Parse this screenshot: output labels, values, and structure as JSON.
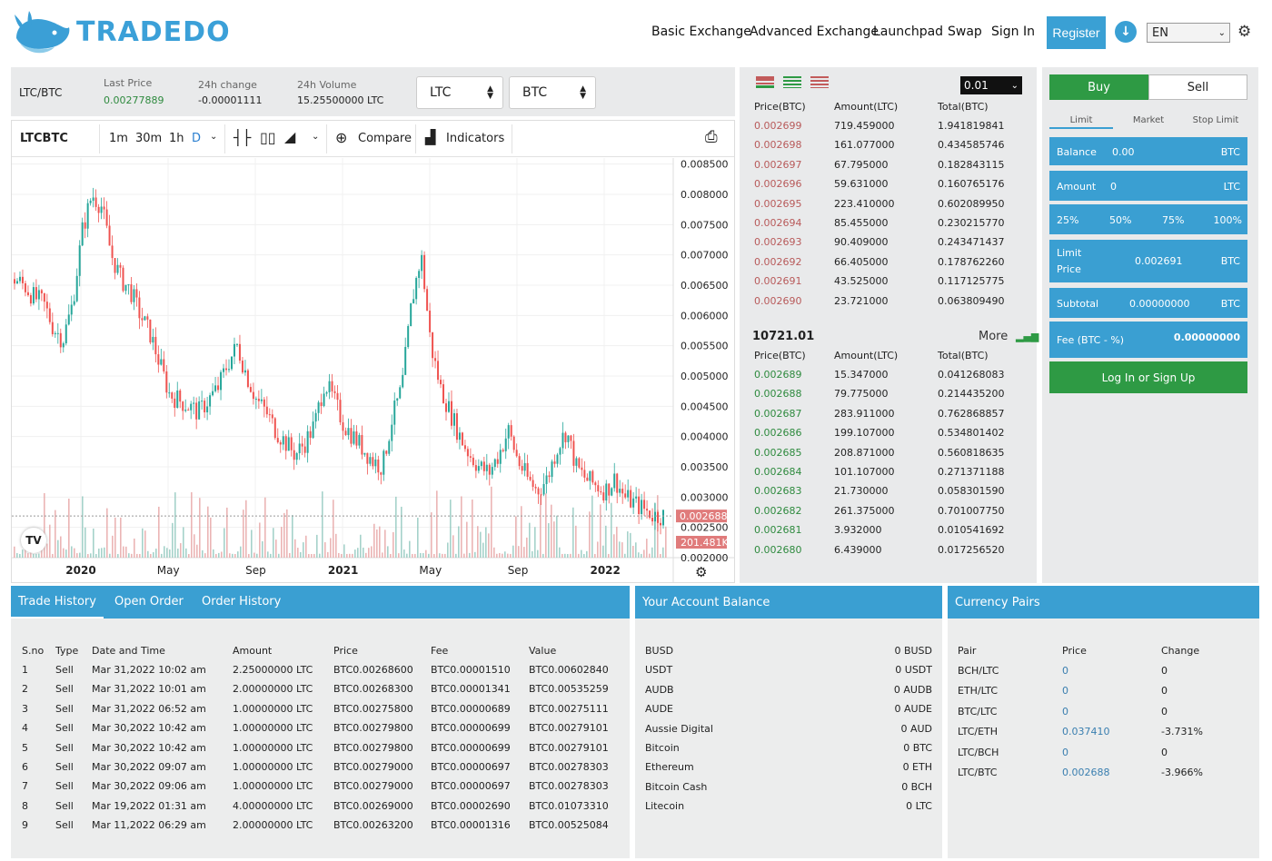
{
  "header": {
    "brand": "TRADEDO",
    "nav": [
      "Basic Exchange",
      "Advanced Exchange",
      "Launchpad",
      "Swap",
      "Sign In"
    ],
    "register": "Register",
    "language": "EN"
  },
  "ticker": {
    "pair": "LTC/BTC",
    "last_price_label": "Last Price",
    "last_price": "0.00277889",
    "change_label": "24h change",
    "change": "-0.00001111",
    "volume_label": "24h Volume",
    "volume": "15.25500000 LTC",
    "base_select": "LTC",
    "quote_select": "BTC"
  },
  "chart_toolbar": {
    "symbol": "LTCBTC",
    "intervals": [
      "1m",
      "30m",
      "1h",
      "D"
    ],
    "compare": "Compare",
    "indicators": "Indicators"
  },
  "chart_data": {
    "type": "candlestick",
    "y_ticks": [
      "0.008500",
      "0.008000",
      "0.007500",
      "0.007000",
      "0.006500",
      "0.006000",
      "0.005500",
      "0.005000",
      "0.004500",
      "0.004000",
      "0.003500",
      "0.003000",
      "0.002500",
      "0.002000"
    ],
    "x_ticks": [
      "2020",
      "May",
      "Sep",
      "2021",
      "May",
      "Sep",
      "2022"
    ],
    "last_price_tag": "0.002688",
    "volume_tag": "201.481K",
    "ylim": [
      0.002,
      0.0086
    ],
    "series": [
      {
        "name": "close",
        "values": [
          0.0066,
          0.0065,
          0.0063,
          0.0062,
          0.0058,
          0.0056,
          0.0062,
          0.0074,
          0.008,
          0.0078,
          0.007,
          0.0066,
          0.0064,
          0.006,
          0.0057,
          0.0052,
          0.0047,
          0.0046,
          0.0045,
          0.0044,
          0.0046,
          0.0048,
          0.0052,
          0.0055,
          0.005,
          0.0046,
          0.0044,
          0.0041,
          0.0039,
          0.0037,
          0.0039,
          0.0042,
          0.0049,
          0.0046,
          0.0042,
          0.004,
          0.0038,
          0.0036,
          0.0035,
          0.0043,
          0.0048,
          0.0062,
          0.007,
          0.0055,
          0.0048,
          0.0044,
          0.004,
          0.0037,
          0.0035,
          0.0034,
          0.0037,
          0.0041,
          0.0036,
          0.0033,
          0.0031,
          0.0033,
          0.0038,
          0.0041,
          0.0035,
          0.0033,
          0.0032,
          0.0031,
          0.0033,
          0.003,
          0.0029,
          0.0028,
          0.0027,
          0.00269
        ]
      }
    ]
  },
  "orderbook": {
    "step": "0.01",
    "headers": [
      "Price(BTC)",
      "Amount(LTC)",
      "Total(BTC)"
    ],
    "asks": [
      [
        "0.002699",
        "719.459000",
        "1.941819841"
      ],
      [
        "0.002698",
        "161.077000",
        "0.434585746"
      ],
      [
        "0.002697",
        "67.795000",
        "0.182843115"
      ],
      [
        "0.002696",
        "59.631000",
        "0.160765176"
      ],
      [
        "0.002695",
        "223.410000",
        "0.602089950"
      ],
      [
        "0.002694",
        "85.455000",
        "0.230215770"
      ],
      [
        "0.002693",
        "90.409000",
        "0.243471437"
      ],
      [
        "0.002692",
        "66.405000",
        "0.178762260"
      ],
      [
        "0.002691",
        "43.525000",
        "0.117125775"
      ],
      [
        "0.002690",
        "23.721000",
        "0.063809490"
      ]
    ],
    "mid": "10721.01",
    "more": "More",
    "bids": [
      [
        "0.002689",
        "15.347000",
        "0.041268083"
      ],
      [
        "0.002688",
        "79.775000",
        "0.214435200"
      ],
      [
        "0.002687",
        "283.911000",
        "0.762868857"
      ],
      [
        "0.002686",
        "199.107000",
        "0.534801402"
      ],
      [
        "0.002685",
        "208.871000",
        "0.560818635"
      ],
      [
        "0.002684",
        "101.107000",
        "0.271371188"
      ],
      [
        "0.002683",
        "21.730000",
        "0.058301590"
      ],
      [
        "0.002682",
        "261.375000",
        "0.701007750"
      ],
      [
        "0.002681",
        "3.932000",
        "0.010541692"
      ],
      [
        "0.002680",
        "6.439000",
        "0.017256520"
      ]
    ]
  },
  "trade_form": {
    "buy": "Buy",
    "sell": "Sell",
    "types": [
      "Limit",
      "Market",
      "Stop Limit"
    ],
    "balance_label": "Balance",
    "balance": "0.00",
    "balance_unit": "BTC",
    "amount_label": "Amount",
    "amount": "0",
    "amount_unit": "LTC",
    "percents": [
      "25%",
      "50%",
      "75%",
      "100%"
    ],
    "limit_label_1": "Limit",
    "limit_label_2": "Price",
    "limit_price": "0.002691",
    "limit_unit": "BTC",
    "subtotal_label": "Subtotal",
    "subtotal": "0.00000000",
    "subtotal_unit": "BTC",
    "fee_label": "Fee (BTC - %)",
    "fee": "0.00000000",
    "login": "Log In or Sign Up"
  },
  "trades": {
    "tabs": [
      "Trade History",
      "Open Order",
      "Order History"
    ],
    "headers": [
      "S.no",
      "Type",
      "Date and Time",
      "Amount",
      "Price",
      "Fee",
      "Value"
    ],
    "rows": [
      [
        "1",
        "Sell",
        "Mar 31,2022 10:02 am",
        "2.25000000 LTC",
        "BTC0.00268600",
        "BTC0.00001510",
        "BTC0.00602840"
      ],
      [
        "2",
        "Sell",
        "Mar 31,2022 10:01 am",
        "2.00000000 LTC",
        "BTC0.00268300",
        "BTC0.00001341",
        "BTC0.00535259"
      ],
      [
        "3",
        "Sell",
        "Mar 31,2022 06:52 am",
        "1.00000000 LTC",
        "BTC0.00275800",
        "BTC0.00000689",
        "BTC0.00275111"
      ],
      [
        "4",
        "Sell",
        "Mar 30,2022 10:42 am",
        "1.00000000 LTC",
        "BTC0.00279800",
        "BTC0.00000699",
        "BTC0.00279101"
      ],
      [
        "5",
        "Sell",
        "Mar 30,2022 10:42 am",
        "1.00000000 LTC",
        "BTC0.00279800",
        "BTC0.00000699",
        "BTC0.00279101"
      ],
      [
        "6",
        "Sell",
        "Mar 30,2022 09:07 am",
        "1.00000000 LTC",
        "BTC0.00279000",
        "BTC0.00000697",
        "BTC0.00278303"
      ],
      [
        "7",
        "Sell",
        "Mar 30,2022 09:06 am",
        "1.00000000 LTC",
        "BTC0.00279000",
        "BTC0.00000697",
        "BTC0.00278303"
      ],
      [
        "8",
        "Sell",
        "Mar 19,2022 01:31 am",
        "4.00000000 LTC",
        "BTC0.00269000",
        "BTC0.00002690",
        "BTC0.01073310"
      ],
      [
        "9",
        "Sell",
        "Mar 11,2022 06:29 am",
        "2.00000000 LTC",
        "BTC0.00263200",
        "BTC0.00001316",
        "BTC0.00525084"
      ]
    ]
  },
  "balance": {
    "title": "Your Account Balance",
    "rows": [
      [
        "BUSD",
        "0 BUSD"
      ],
      [
        "USDT",
        "0 USDT"
      ],
      [
        "AUDB",
        "0 AUDB"
      ],
      [
        "AUDE",
        "0 AUDE"
      ],
      [
        "Aussie Digital",
        "0 AUD"
      ],
      [
        "Bitcoin",
        "0 BTC"
      ],
      [
        "Ethereum",
        "0 ETH"
      ],
      [
        "Bitcoin Cash",
        "0 BCH"
      ],
      [
        "Litecoin",
        "0 LTC"
      ]
    ]
  },
  "pairs": {
    "title": "Currency Pairs",
    "headers": [
      "Pair",
      "Price",
      "Change"
    ],
    "rows": [
      [
        "BCH/LTC",
        "0",
        "0"
      ],
      [
        "ETH/LTC",
        "0",
        "0"
      ],
      [
        "BTC/LTC",
        "0",
        "0"
      ],
      [
        "LTC/ETH",
        "0.037410",
        "-3.731%"
      ],
      [
        "LTC/BCH",
        "0",
        "0"
      ],
      [
        "LTC/BTC",
        "0.002688",
        "-3.966%"
      ]
    ]
  },
  "colors": {
    "accent": "#3a9fd2",
    "buy": "#2e9a44",
    "ask": "#b85a5a",
    "bid": "#2e8a3e"
  }
}
